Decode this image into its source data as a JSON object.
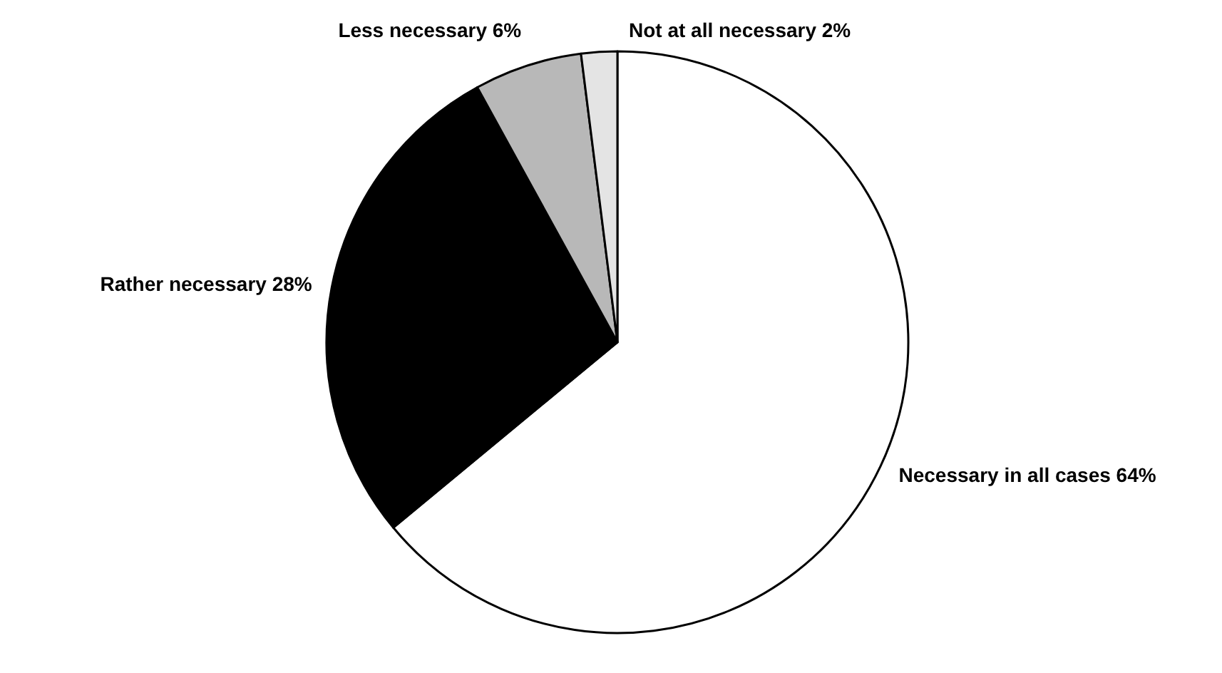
{
  "chart_data": {
    "type": "pie",
    "categories": [
      "Necessary in all cases 64%",
      "Rather necessary 28%",
      "Less necessary 6%",
      "Not at all necessary 2%"
    ],
    "values": [
      64,
      28,
      6,
      2
    ],
    "colors": [
      "#ffffff",
      "#000000",
      "#b8b8b8",
      "#e4e4e4"
    ]
  }
}
